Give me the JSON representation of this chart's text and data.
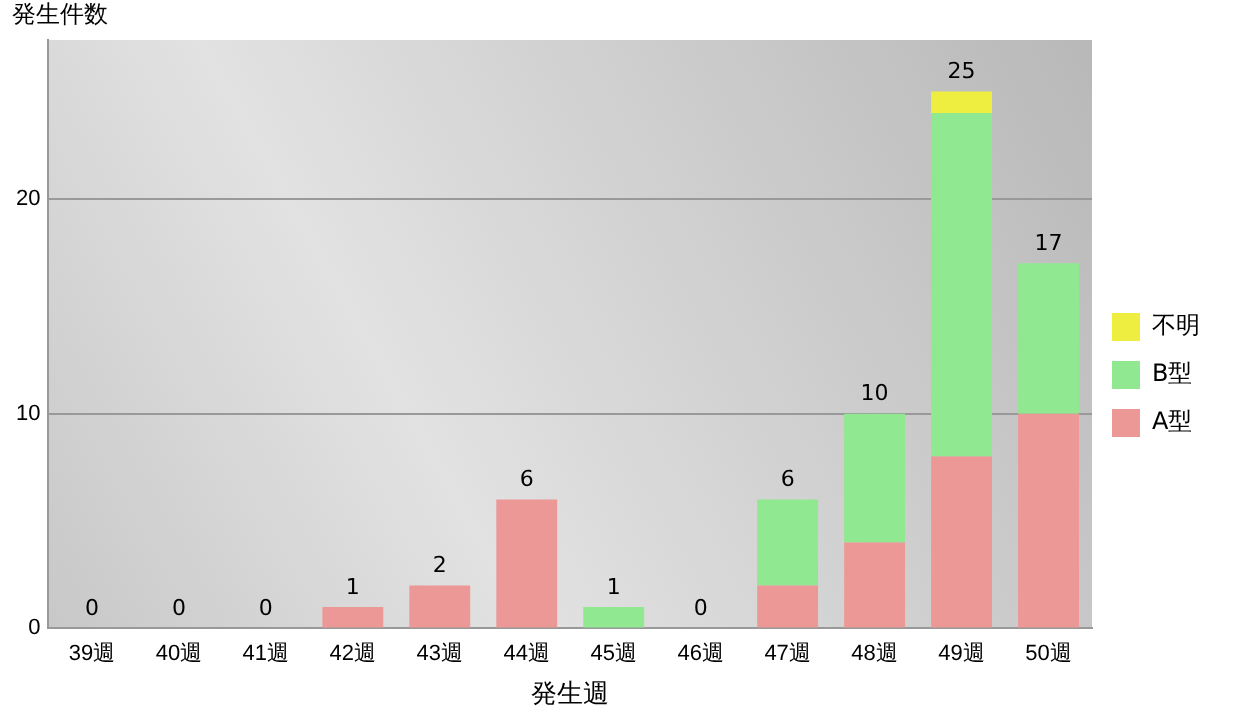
{
  "chart_data": {
    "type": "bar",
    "stacked": true,
    "xlabel": "発生週",
    "ylabel": "発生件数",
    "categories": [
      "39週",
      "40週",
      "41週",
      "42週",
      "43週",
      "44週",
      "45週",
      "46週",
      "47週",
      "48週",
      "49週",
      "50週"
    ],
    "series": [
      {
        "name": "A型",
        "color": "#ec9896",
        "values": [
          0,
          0,
          0,
          1,
          2,
          6,
          0,
          0,
          2,
          4,
          8,
          10
        ]
      },
      {
        "name": "B型",
        "color": "#90e890",
        "values": [
          0,
          0,
          0,
          0,
          0,
          0,
          1,
          0,
          4,
          6,
          16,
          7
        ]
      },
      {
        "name": "不明",
        "color": "#eeee40",
        "values": [
          0,
          0,
          0,
          0,
          0,
          0,
          0,
          0,
          0,
          0,
          1,
          0
        ]
      }
    ],
    "totals": [
      "0",
      "0",
      "0",
      "1",
      "2",
      "6",
      "1",
      "0",
      "6",
      "10",
      "25",
      "17"
    ],
    "ylim": [
      0,
      27.4
    ],
    "yticks": [
      0,
      10,
      20
    ],
    "grid": "y",
    "legend": "right"
  }
}
